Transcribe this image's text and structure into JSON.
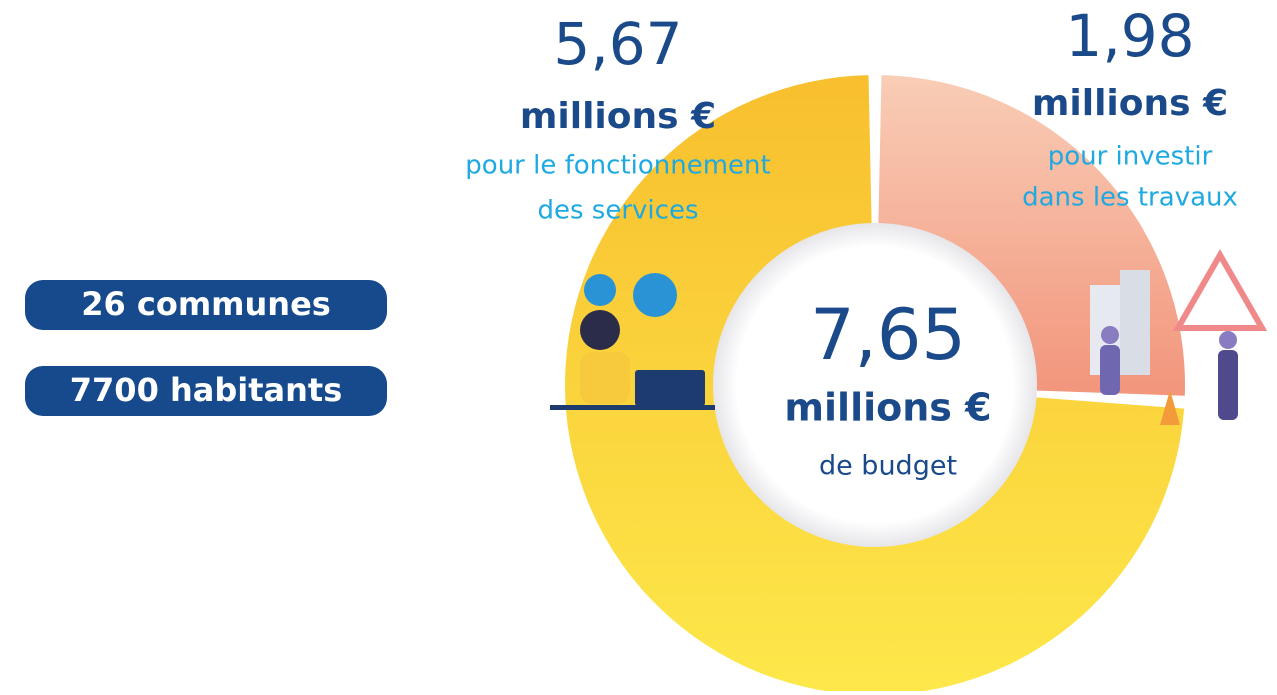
{
  "chart_data": {
    "type": "donut",
    "values": [
      5.67,
      1.98
    ],
    "value_labels": [
      "5,67",
      "1,98"
    ],
    "unit_labels": [
      "millions €",
      "millions €"
    ],
    "category_lines": [
      [
        "pour le fonctionnement",
        "des services"
      ],
      [
        "pour investir",
        "dans les travaux"
      ]
    ],
    "colors": [
      [
        "#f8bf2e",
        "#fde84a"
      ],
      [
        "#f9cdb6",
        "#f2957c"
      ]
    ],
    "total": {
      "value": 7.65,
      "label": "7,65",
      "unit_label": "millions €",
      "caption": "de budget"
    },
    "facts": [
      "26 communes",
      "7700 habitants"
    ]
  }
}
